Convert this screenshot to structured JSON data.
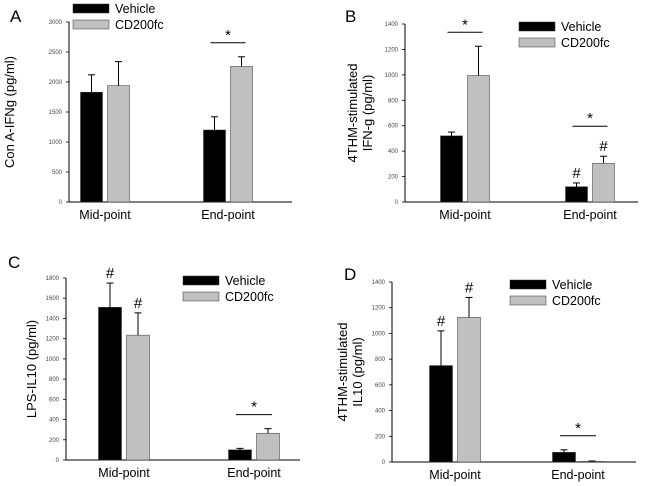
{
  "colors": {
    "vehicle": "#000000",
    "cd200fc": "#c0c0c0",
    "axis": "#000000"
  },
  "chart_data": [
    {
      "panel": "A",
      "type": "bar",
      "ylabel_lines": [
        "Con A-IFNg (pg/ml)"
      ],
      "ylim": [
        0,
        3000
      ],
      "yticks": [
        0,
        500,
        1000,
        1500,
        2000,
        2500,
        3000
      ],
      "categories": [
        "Mid-point",
        "End-point"
      ],
      "legend": [
        "Vehicle",
        "CD200fc"
      ],
      "series": [
        {
          "name": "Vehicle",
          "values": [
            1830,
            1200
          ],
          "errors": [
            290,
            220
          ]
        },
        {
          "name": "CD200fc",
          "values": [
            1940,
            2260
          ],
          "errors": [
            400,
            160
          ]
        }
      ],
      "annotations": [
        {
          "text": "*",
          "type": "bracket",
          "category": 1
        }
      ]
    },
    {
      "panel": "B",
      "type": "bar",
      "ylabel_lines": [
        "4THM-stimulated",
        "IFN-g (pg/ml)"
      ],
      "ylim": [
        0,
        1400
      ],
      "yticks": [
        0,
        200,
        400,
        600,
        800,
        1000,
        1200,
        1400
      ],
      "categories": [
        "Mid-point",
        "End-point"
      ],
      "legend": [
        "Vehicle",
        "CD200fc"
      ],
      "series": [
        {
          "name": "Vehicle",
          "values": [
            520,
            120
          ],
          "errors": [
            30,
            30
          ]
        },
        {
          "name": "CD200fc",
          "values": [
            995,
            305
          ],
          "errors": [
            230,
            55
          ]
        }
      ],
      "annotations": [
        {
          "text": "*",
          "type": "bracket",
          "category": 0
        },
        {
          "text": "*",
          "type": "bracket",
          "category": 1
        },
        {
          "text": "#",
          "type": "mark",
          "category": 1,
          "series": 0
        },
        {
          "text": "#",
          "type": "mark",
          "category": 1,
          "series": 1
        }
      ]
    },
    {
      "panel": "C",
      "type": "bar",
      "ylabel_lines": [
        "LPS-IL10 (pg/ml)"
      ],
      "ylim": [
        0,
        1800
      ],
      "yticks": [
        0,
        200,
        400,
        600,
        800,
        1000,
        1200,
        1400,
        1600,
        1800
      ],
      "categories": [
        "Mid-point",
        "End-point"
      ],
      "legend": [
        "Vehicle",
        "CD200fc"
      ],
      "series": [
        {
          "name": "Vehicle",
          "values": [
            1510,
            100
          ],
          "errors": [
            240,
            15
          ]
        },
        {
          "name": "CD200fc",
          "values": [
            1235,
            265
          ],
          "errors": [
            220,
            45
          ]
        }
      ],
      "annotations": [
        {
          "text": "#",
          "type": "mark",
          "category": 0,
          "series": 0
        },
        {
          "text": "#",
          "type": "mark",
          "category": 0,
          "series": 1
        },
        {
          "text": "*",
          "type": "bracket",
          "category": 1
        }
      ]
    },
    {
      "panel": "D",
      "type": "bar",
      "ylabel_lines": [
        "4THM-stimulated",
        "IL10 (pg/ml)"
      ],
      "ylim": [
        0,
        1400
      ],
      "yticks": [
        0,
        200,
        400,
        600,
        800,
        1000,
        1200,
        1400
      ],
      "categories": [
        "Mid-point",
        "End-point"
      ],
      "legend": [
        "Vehicle",
        "CD200fc"
      ],
      "series": [
        {
          "name": "Vehicle",
          "values": [
            750,
            75
          ],
          "errors": [
            270,
            20
          ]
        },
        {
          "name": "CD200fc",
          "values": [
            1125,
            5
          ],
          "errors": [
            155,
            3
          ]
        }
      ],
      "annotations": [
        {
          "text": "#",
          "type": "mark",
          "category": 0,
          "series": 0
        },
        {
          "text": "#",
          "type": "mark",
          "category": 0,
          "series": 1
        },
        {
          "text": "*",
          "type": "bracket",
          "category": 1
        }
      ]
    }
  ]
}
